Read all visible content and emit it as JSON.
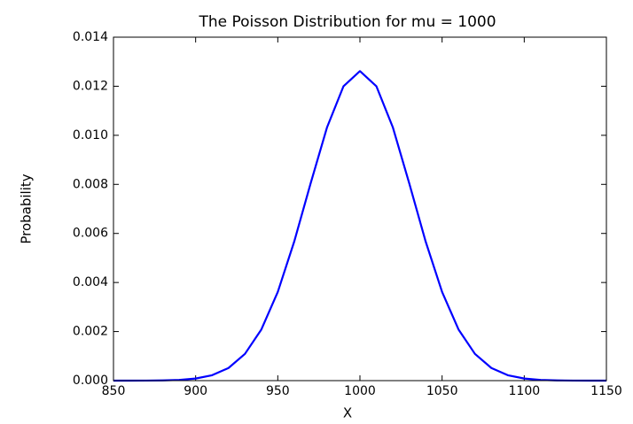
{
  "chart_data": {
    "type": "line",
    "title": "The Poisson Distribution for mu = 1000",
    "x_label": "X",
    "y_label": "Probability",
    "x": [
      850,
      860,
      870,
      880,
      890,
      900,
      910,
      920,
      930,
      940,
      950,
      960,
      970,
      980,
      990,
      1000,
      1010,
      1020,
      1030,
      1040,
      1050,
      1060,
      1070,
      1080,
      1090,
      1100,
      1110,
      1120,
      1130,
      1140,
      1150
    ],
    "values": [
      2e-07,
      7e-07,
      2.7e-06,
      9.4e-06,
      2.98e-05,
      8.5e-05,
      0.00022,
      0.000514,
      0.001089,
      0.002085,
      0.003615,
      0.005669,
      0.008044,
      0.010329,
      0.012001,
      0.012616,
      0.012001,
      0.010329,
      0.008044,
      0.005669,
      0.003615,
      0.002085,
      0.001089,
      0.000514,
      0.00022,
      8.5e-05,
      2.98e-05,
      9.4e-06,
      2.7e-06,
      7e-07,
      2e-07
    ],
    "color": "#0000ff",
    "xlim": [
      850,
      1150
    ],
    "xticks": [
      850,
      900,
      950,
      1000,
      1050,
      1100,
      1150
    ],
    "ylim": [
      0,
      0.014
    ],
    "yticks": [
      {
        "value": 0,
        "label": "0.000"
      },
      {
        "value": 0.002,
        "label": "0.002"
      },
      {
        "value": 0.004,
        "label": "0.004"
      },
      {
        "value": 0.006,
        "label": "0.006"
      },
      {
        "value": 0.008,
        "label": "0.008"
      },
      {
        "value": 0.01,
        "label": "0.010"
      },
      {
        "value": 0.012,
        "label": "0.012"
      },
      {
        "value": 0.014,
        "label": "0.014"
      }
    ],
    "grid": false
  }
}
